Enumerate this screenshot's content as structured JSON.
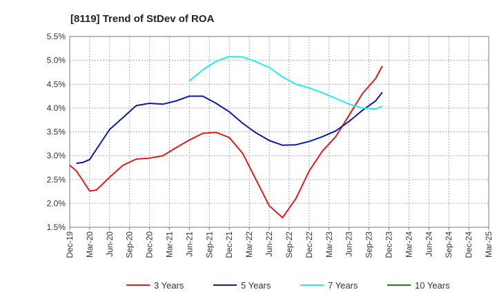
{
  "chart_data": {
    "type": "line",
    "title": "[8119]  Trend of StDev of ROA",
    "xlabel": "",
    "ylabel": "",
    "ylim": [
      1.5,
      5.5
    ],
    "y_ticks": [
      1.5,
      2.0,
      2.5,
      3.0,
      3.5,
      4.0,
      4.5,
      5.0,
      5.5
    ],
    "y_tick_labels": [
      "1.5%",
      "2.0%",
      "2.5%",
      "3.0%",
      "3.5%",
      "4.0%",
      "4.5%",
      "5.0%",
      "5.5%"
    ],
    "x_tick_labels": [
      "Dec-19",
      "Mar-20",
      "Jun-20",
      "Sep-20",
      "Dec-20",
      "Mar-21",
      "Jun-21",
      "Sep-21",
      "Dec-21",
      "Mar-22",
      "Jun-22",
      "Sep-22",
      "Dec-22",
      "Mar-23",
      "Jun-23",
      "Sep-23",
      "Dec-23",
      "Mar-24",
      "Jun-24",
      "Sep-24",
      "Dec-24",
      "Mar-25"
    ],
    "grid": true,
    "legend_position": "bottom",
    "series": [
      {
        "name": "3 Years",
        "color": "#e8191c",
        "points": [
          [
            0,
            2.8
          ],
          [
            1,
            2.68
          ],
          [
            2,
            2.47
          ],
          [
            3,
            2.26
          ],
          [
            4,
            2.28
          ],
          [
            6,
            2.55
          ],
          [
            8,
            2.8
          ],
          [
            10,
            2.93
          ],
          [
            12,
            2.95
          ],
          [
            14,
            3.0
          ],
          [
            16,
            3.17
          ],
          [
            18,
            3.33
          ],
          [
            20,
            3.47
          ],
          [
            22,
            3.49
          ],
          [
            24,
            3.38
          ],
          [
            26,
            3.05
          ],
          [
            28,
            2.5
          ],
          [
            30,
            1.95
          ],
          [
            32,
            1.7
          ],
          [
            34,
            2.1
          ],
          [
            36,
            2.68
          ],
          [
            38,
            3.1
          ],
          [
            40,
            3.4
          ],
          [
            42,
            3.85
          ],
          [
            44,
            4.3
          ],
          [
            46,
            4.62
          ],
          [
            47,
            4.88
          ]
        ]
      },
      {
        "name": "5 Years",
        "color": "#0b18b8",
        "points": [
          [
            1,
            2.84
          ],
          [
            2,
            2.86
          ],
          [
            3,
            2.92
          ],
          [
            4,
            3.13
          ],
          [
            6,
            3.55
          ],
          [
            8,
            3.8
          ],
          [
            10,
            4.05
          ],
          [
            12,
            4.1
          ],
          [
            14,
            4.08
          ],
          [
            16,
            4.15
          ],
          [
            18,
            4.25
          ],
          [
            20,
            4.25
          ],
          [
            22,
            4.1
          ],
          [
            24,
            3.92
          ],
          [
            26,
            3.68
          ],
          [
            28,
            3.48
          ],
          [
            30,
            3.32
          ],
          [
            32,
            3.22
          ],
          [
            34,
            3.23
          ],
          [
            36,
            3.3
          ],
          [
            38,
            3.4
          ],
          [
            40,
            3.52
          ],
          [
            42,
            3.72
          ],
          [
            44,
            3.95
          ],
          [
            46,
            4.15
          ],
          [
            47,
            4.33
          ]
        ]
      },
      {
        "name": "7 Years",
        "color": "#1cf0ee",
        "points": [
          [
            18,
            4.57
          ],
          [
            20,
            4.8
          ],
          [
            22,
            4.98
          ],
          [
            24,
            5.08
          ],
          [
            26,
            5.07
          ],
          [
            28,
            4.97
          ],
          [
            30,
            4.85
          ],
          [
            32,
            4.65
          ],
          [
            34,
            4.5
          ],
          [
            36,
            4.42
          ],
          [
            38,
            4.32
          ],
          [
            40,
            4.2
          ],
          [
            42,
            4.08
          ],
          [
            44,
            4.0
          ],
          [
            46,
            3.98
          ],
          [
            47,
            4.04
          ]
        ]
      },
      {
        "name": "10 Years",
        "color": "#1e7a1e",
        "points": []
      }
    ]
  }
}
